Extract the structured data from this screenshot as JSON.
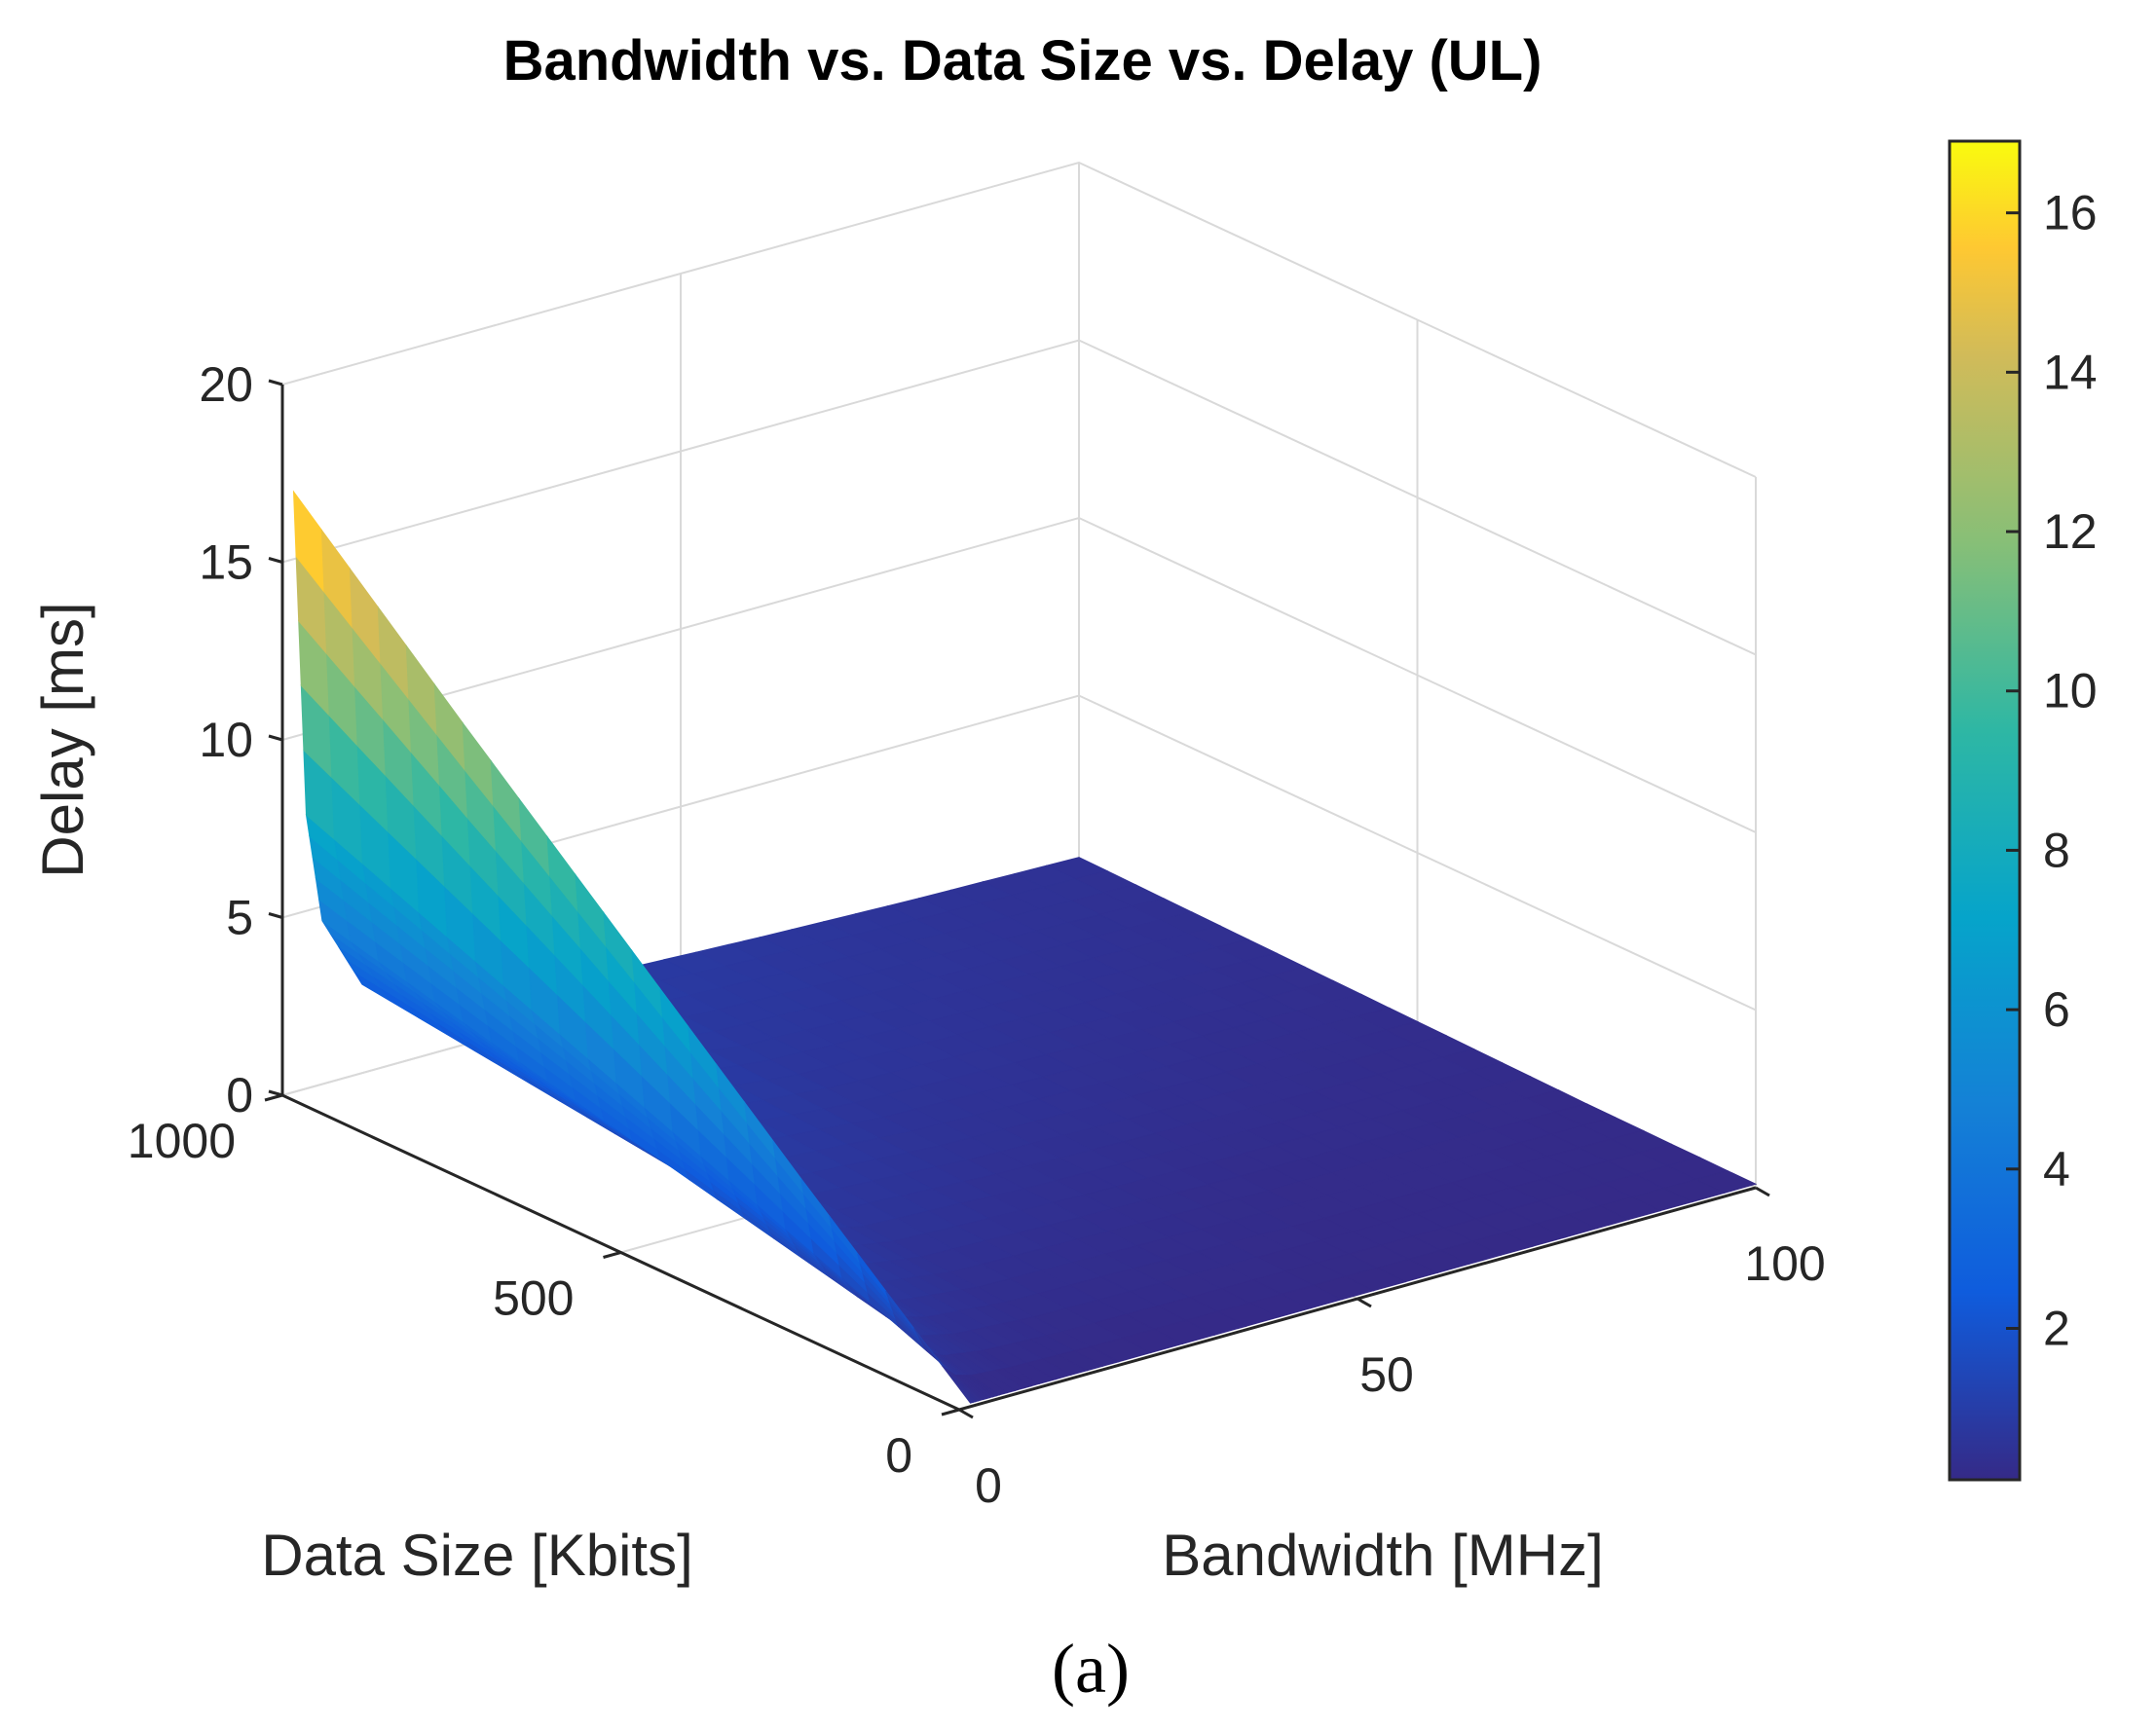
{
  "chart_data": {
    "type": "surface3d",
    "title": "Bandwidth vs. Data Size vs. Delay (UL)",
    "xlabel": "Bandwidth [MHz]",
    "ylabel": "Data Size [Kbits]",
    "zlabel": "Delay [ms]",
    "xlim": [
      0,
      100
    ],
    "ylim": [
      0,
      1000
    ],
    "zlim": [
      0,
      20
    ],
    "x_ticks": [
      "0",
      "50",
      "100"
    ],
    "y_ticks": [
      "0",
      "500",
      "1000"
    ],
    "z_ticks": [
      "0",
      "5",
      "10",
      "15",
      "20"
    ],
    "colorbar": {
      "range": [
        0.1,
        16.9
      ],
      "ticks": [
        "2",
        "4",
        "6",
        "8",
        "10",
        "12",
        "14",
        "16"
      ],
      "colormap": "parula"
    },
    "surface": {
      "bandwidth": [
        1.4,
        3,
        5,
        10,
        20,
        40,
        60,
        80,
        100
      ],
      "data_size": [
        0,
        250,
        500,
        750,
        1000
      ],
      "delay": [
        [
          0.1,
          0.1,
          0.1,
          0.1,
          0.1,
          0.1,
          0.1,
          0.1,
          0.1
        ],
        [
          4.2,
          2.0,
          1.2,
          0.7,
          0.4,
          0.3,
          0.2,
          0.2,
          0.15
        ],
        [
          8.4,
          3.9,
          2.3,
          1.3,
          0.8,
          0.5,
          0.4,
          0.3,
          0.25
        ],
        [
          12.6,
          5.8,
          3.4,
          1.9,
          1.2,
          0.7,
          0.55,
          0.45,
          0.35
        ],
        [
          16.9,
          7.7,
          4.6,
          2.5,
          1.5,
          0.9,
          0.7,
          0.55,
          0.45
        ]
      ]
    }
  },
  "caption": "(a)"
}
